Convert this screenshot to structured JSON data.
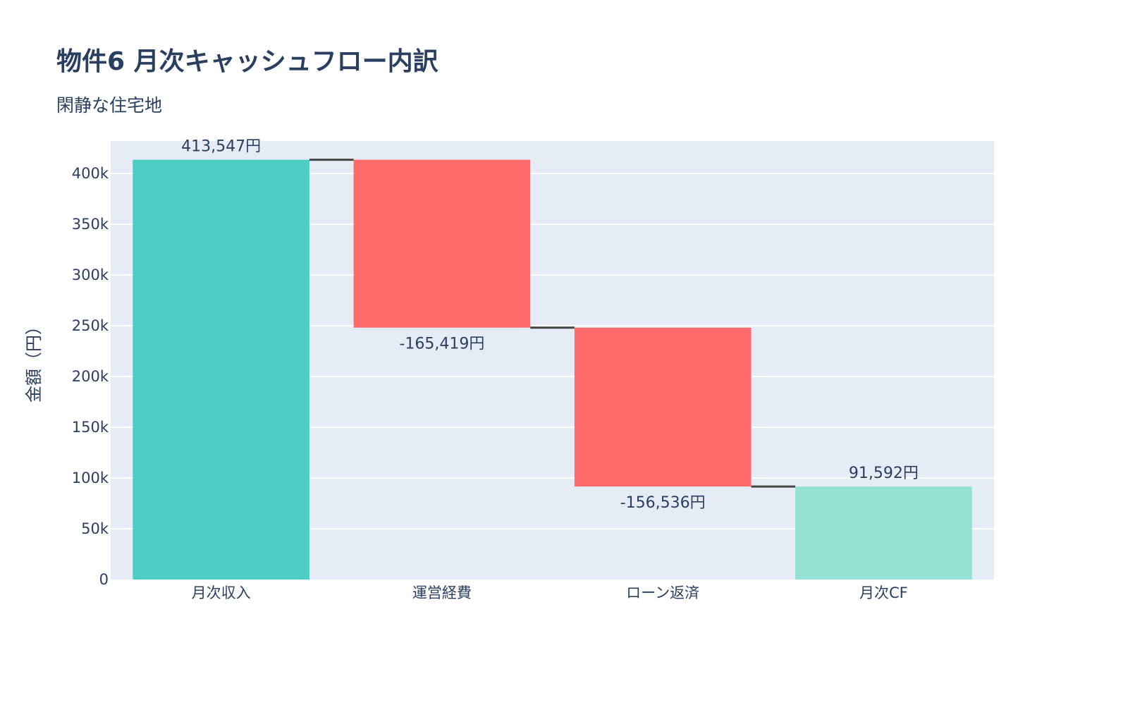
{
  "chart_data": {
    "type": "waterfall",
    "title": "物件6 月次キャッシュフロー内訳",
    "subtitle": "閑静な住宅地",
    "ylabel": "金額（円）",
    "xlabel": "",
    "categories": [
      "月次収入",
      "運営経費",
      "ローン返済",
      "月次CF"
    ],
    "measures": [
      "absolute",
      "relative",
      "relative",
      "total"
    ],
    "values": [
      413547,
      -165419,
      -156536,
      91592
    ],
    "text": [
      "413,547円",
      "-165,419円",
      "-156,536円",
      "91,592円"
    ],
    "ylim": [
      0,
      432000
    ],
    "yticks": [
      0,
      50000,
      100000,
      150000,
      200000,
      250000,
      300000,
      350000,
      400000
    ],
    "ytick_labels": [
      "0",
      "50k",
      "100k",
      "150k",
      "200k",
      "250k",
      "300k",
      "350k",
      "400k"
    ],
    "grid": true,
    "colors": {
      "increasing": "#4ECDC4",
      "decreasing": "#FF6B6B",
      "total": "#95E1D3",
      "connector": "#444444",
      "plot_bg": "#E5ECF6"
    }
  }
}
